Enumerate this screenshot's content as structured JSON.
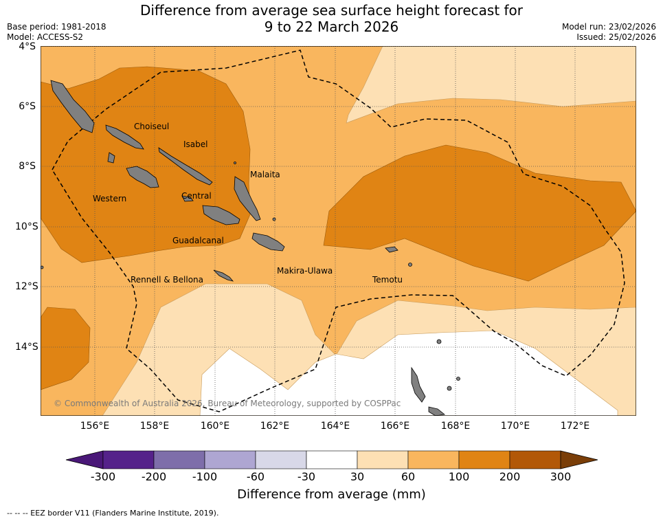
{
  "title_line1": "Difference from average sea surface height forecast for",
  "title_line2": "9 to 22 March 2026",
  "base_period": "Base period: 1981-2018",
  "model": "Model: ACCESS-S2",
  "model_run": "Model run: 23/02/2026",
  "issued": "Issued: 25/02/2026",
  "lat_labels": [
    "4°S",
    "6°S",
    "8°S",
    "10°S",
    "12°S",
    "14°S"
  ],
  "lon_labels": [
    "156°E",
    "158°E",
    "160°E",
    "162°E",
    "164°E",
    "166°E",
    "168°E",
    "170°E",
    "172°E"
  ],
  "regions": [
    "Choiseul",
    "Isabel",
    "Malaita",
    "Western",
    "Central",
    "Guadalcanal",
    "Makira-Ulawa",
    "Rennell & Bellona",
    "Temotu"
  ],
  "copyright": "© Commonwealth of Australia 2026, Bureau of Meteorology, supported by COSPPac",
  "colorbar": {
    "ticks": [
      "-300",
      "-200",
      "-100",
      "-60",
      "-30",
      "30",
      "60",
      "100",
      "200",
      "300"
    ],
    "colors": [
      "#4a1878",
      "#55228a",
      "#7e6eaa",
      "#aea6d2",
      "#d8d8e8",
      "#ffffff",
      "#fde0b4",
      "#f9b65e",
      "#e08414",
      "#b25808",
      "#7a3e08"
    ],
    "title": "Difference from average (mm)"
  },
  "footer": "--  --  -- EEZ border V11 (Flanders Marine Institute, 2019)."
}
